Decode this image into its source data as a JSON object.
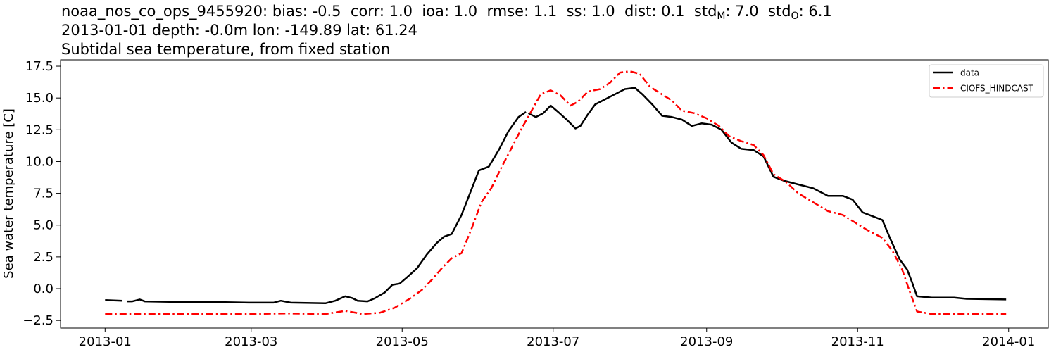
{
  "title": {
    "line1": {
      "station": "noaa_nos_co_ops_9455920",
      "stats": [
        {
          "label": "bias",
          "value": "-0.5"
        },
        {
          "label": "corr",
          "value": "1.0"
        },
        {
          "label": "ioa",
          "value": "1.0"
        },
        {
          "label": "rmse",
          "value": "1.1"
        },
        {
          "label": "ss",
          "value": "1.0"
        },
        {
          "label": "dist",
          "value": "0.1"
        },
        {
          "label": "std",
          "sub": "M",
          "value": "7.0"
        },
        {
          "label": "std",
          "sub": "O",
          "value": "6.1"
        }
      ]
    },
    "line2": "2013-01-01 depth: -0.0m lon: -149.89 lat: 61.24",
    "line3": "Subtidal sea temperature, from fixed station"
  },
  "chart_data": {
    "type": "line",
    "xlabel": "",
    "ylabel": "Sea water temperature [C]",
    "xlim": [
      "2012-12-14",
      "2014-01-17"
    ],
    "ylim": [
      -3.1,
      18.0
    ],
    "x_ticks": [
      "2013-01",
      "2013-03",
      "2013-05",
      "2013-07",
      "2013-09",
      "2013-11",
      "2014-01"
    ],
    "y_ticks": [
      -2.5,
      0.0,
      2.5,
      5.0,
      7.5,
      10.0,
      12.5,
      15.0,
      17.5
    ],
    "y_tick_labels": [
      "−2.5",
      "0.0",
      "2.5",
      "5.0",
      "7.5",
      "10.0",
      "12.5",
      "15.0",
      "17.5"
    ],
    "grid": false,
    "legend": "top-right",
    "series": [
      {
        "name": "data",
        "color": "#000000",
        "style": "solid",
        "segments": [
          [
            [
              "2013-01-01",
              -0.9
            ],
            [
              "2013-01-08",
              -0.95
            ]
          ],
          [
            [
              "2013-01-10",
              -1.0
            ],
            [
              "2013-01-12",
              -1.0
            ],
            [
              "2013-01-15",
              -0.85
            ],
            [
              "2013-01-17",
              -1.0
            ],
            [
              "2013-01-31",
              -1.05
            ],
            [
              "2013-02-15",
              -1.05
            ],
            [
              "2013-02-28",
              -1.1
            ],
            [
              "2013-03-10",
              -1.1
            ],
            [
              "2013-03-13",
              -0.95
            ],
            [
              "2013-03-17",
              -1.1
            ],
            [
              "2013-03-31",
              -1.15
            ],
            [
              "2013-04-04",
              -0.95
            ],
            [
              "2013-04-08",
              -0.6
            ],
            [
              "2013-04-11",
              -0.75
            ],
            [
              "2013-04-13",
              -0.95
            ],
            [
              "2013-04-17",
              -1.0
            ],
            [
              "2013-04-20",
              -0.75
            ],
            [
              "2013-04-24",
              -0.3
            ],
            [
              "2013-04-27",
              0.3
            ],
            [
              "2013-04-30",
              0.4
            ],
            [
              "2013-05-03",
              0.9
            ],
            [
              "2013-05-07",
              1.6
            ],
            [
              "2013-05-11",
              2.7
            ],
            [
              "2013-05-15",
              3.6
            ],
            [
              "2013-05-18",
              4.1
            ],
            [
              "2013-05-21",
              4.3
            ],
            [
              "2013-05-25",
              5.8
            ],
            [
              "2013-05-29",
              7.8
            ],
            [
              "2013-06-01",
              9.3
            ],
            [
              "2013-06-05",
              9.6
            ],
            [
              "2013-06-09",
              10.9
            ],
            [
              "2013-06-13",
              12.4
            ],
            [
              "2013-06-17",
              13.5
            ],
            [
              "2013-06-20",
              13.9
            ]
          ],
          [
            [
              "2013-06-21",
              13.8
            ],
            [
              "2013-06-24",
              13.5
            ],
            [
              "2013-06-27",
              13.8
            ],
            [
              "2013-06-30",
              14.4
            ],
            [
              "2013-07-03",
              13.9
            ],
            [
              "2013-07-07",
              13.2
            ],
            [
              "2013-07-10",
              12.6
            ],
            [
              "2013-07-12",
              12.8
            ],
            [
              "2013-07-15",
              13.7
            ],
            [
              "2013-07-18",
              14.5
            ],
            [
              "2013-07-22",
              14.9
            ],
            [
              "2013-07-26",
              15.3
            ],
            [
              "2013-07-30",
              15.7
            ],
            [
              "2013-08-03",
              15.8
            ],
            [
              "2013-08-06",
              15.3
            ],
            [
              "2013-08-10",
              14.5
            ],
            [
              "2013-08-14",
              13.6
            ],
            [
              "2013-08-18",
              13.5
            ],
            [
              "2013-08-22",
              13.3
            ],
            [
              "2013-08-26",
              12.8
            ],
            [
              "2013-08-30",
              13.0
            ],
            [
              "2013-09-03",
              12.9
            ],
            [
              "2013-09-07",
              12.5
            ],
            [
              "2013-09-11",
              11.5
            ],
            [
              "2013-09-15",
              11.0
            ],
            [
              "2013-09-20",
              10.9
            ],
            [
              "2013-09-24",
              10.4
            ],
            [
              "2013-09-28",
              8.8
            ],
            [
              "2013-10-02",
              8.5
            ],
            [
              "2013-10-08",
              8.2
            ],
            [
              "2013-10-14",
              7.9
            ],
            [
              "2013-10-20",
              7.3
            ],
            [
              "2013-10-26",
              7.3
            ],
            [
              "2013-10-30",
              7.0
            ],
            [
              "2013-11-03",
              6.0
            ],
            [
              "2013-11-07",
              5.7
            ],
            [
              "2013-11-11",
              5.4
            ],
            [
              "2013-11-14",
              4.0
            ],
            [
              "2013-11-18",
              2.3
            ],
            [
              "2013-11-21",
              1.5
            ],
            [
              "2013-11-23",
              0.5
            ],
            [
              "2013-11-25",
              -0.6
            ],
            [
              "2013-12-01",
              -0.7
            ],
            [
              "2013-12-10",
              -0.7
            ],
            [
              "2013-12-15",
              -0.8
            ],
            [
              "2013-12-31",
              -0.85
            ]
          ]
        ]
      },
      {
        "name": "CIOFS_HINDCAST",
        "color": "#ff0000",
        "style": "dash-dot",
        "segments": [
          [
            [
              "2013-01-01",
              -2.0
            ],
            [
              "2013-01-31",
              -2.0
            ],
            [
              "2013-02-28",
              -2.0
            ],
            [
              "2013-03-15",
              -1.95
            ],
            [
              "2013-03-31",
              -2.0
            ],
            [
              "2013-04-08",
              -1.75
            ],
            [
              "2013-04-15",
              -2.0
            ],
            [
              "2013-04-22",
              -1.9
            ],
            [
              "2013-04-28",
              -1.5
            ],
            [
              "2013-05-04",
              -0.8
            ],
            [
              "2013-05-09",
              -0.1
            ],
            [
              "2013-05-13",
              0.7
            ],
            [
              "2013-05-17",
              1.6
            ],
            [
              "2013-05-21",
              2.4
            ],
            [
              "2013-05-25",
              2.8
            ],
            [
              "2013-05-29",
              4.7
            ],
            [
              "2013-06-02",
              6.8
            ],
            [
              "2013-06-06",
              7.9
            ],
            [
              "2013-06-10",
              9.5
            ],
            [
              "2013-06-14",
              11.0
            ],
            [
              "2013-06-18",
              12.5
            ],
            [
              "2013-06-22",
              13.9
            ],
            [
              "2013-06-26",
              15.3
            ],
            [
              "2013-06-30",
              15.6
            ],
            [
              "2013-07-04",
              15.2
            ],
            [
              "2013-07-08",
              14.4
            ],
            [
              "2013-07-11",
              14.7
            ],
            [
              "2013-07-15",
              15.5
            ],
            [
              "2013-07-20",
              15.7
            ],
            [
              "2013-07-24",
              16.2
            ],
            [
              "2013-07-28",
              17.0
            ],
            [
              "2013-08-01",
              17.1
            ],
            [
              "2013-08-05",
              16.9
            ],
            [
              "2013-08-09",
              15.9
            ],
            [
              "2013-08-13",
              15.4
            ],
            [
              "2013-08-18",
              14.8
            ],
            [
              "2013-08-22",
              14.0
            ],
            [
              "2013-08-27",
              13.8
            ],
            [
              "2013-09-01",
              13.4
            ],
            [
              "2013-09-06",
              12.8
            ],
            [
              "2013-09-10",
              12.0
            ],
            [
              "2013-09-15",
              11.6
            ],
            [
              "2013-09-20",
              11.3
            ],
            [
              "2013-09-24",
              10.5
            ],
            [
              "2013-09-28",
              9.0
            ],
            [
              "2013-10-03",
              8.4
            ],
            [
              "2013-10-08",
              7.5
            ],
            [
              "2013-10-14",
              6.8
            ],
            [
              "2013-10-20",
              6.1
            ],
            [
              "2013-10-26",
              5.8
            ],
            [
              "2013-10-31",
              5.2
            ],
            [
              "2013-11-05",
              4.6
            ],
            [
              "2013-11-11",
              4.0
            ],
            [
              "2013-11-15",
              3.0
            ],
            [
              "2013-11-19",
              1.5
            ],
            [
              "2013-11-22",
              -0.2
            ],
            [
              "2013-11-25",
              -1.8
            ],
            [
              "2013-12-01",
              -2.0
            ],
            [
              "2013-12-15",
              -2.0
            ],
            [
              "2013-12-31",
              -2.0
            ]
          ]
        ]
      }
    ]
  }
}
